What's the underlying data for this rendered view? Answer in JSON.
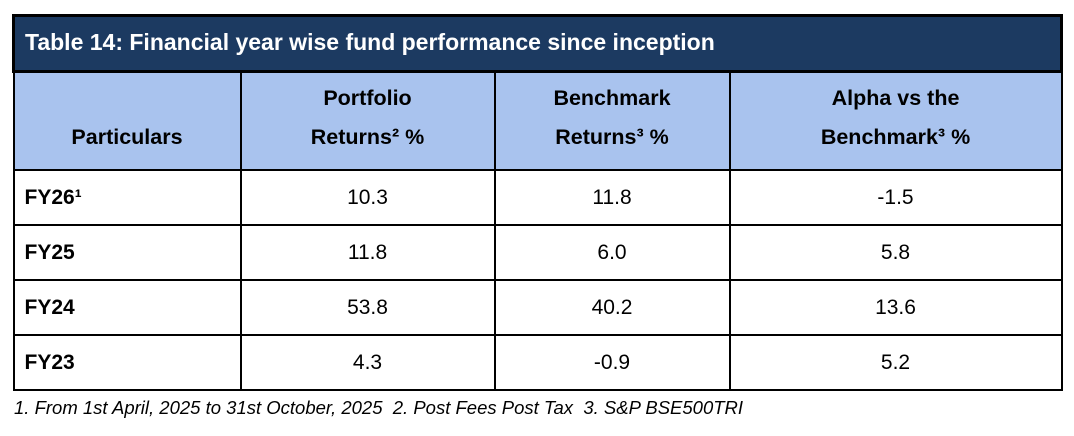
{
  "colors": {
    "title_bg": "#1C3A61",
    "title_text": "#FFFFFF",
    "header_bg": "#A9C3EE",
    "border": "#000000"
  },
  "table": {
    "title": "Table 14: Financial year wise fund performance since inception",
    "columns": [
      {
        "line1": "Particulars",
        "line2": ""
      },
      {
        "line1": "Portfolio",
        "line2": "Returns² %"
      },
      {
        "line1": "Benchmark",
        "line2": "Returns³ %"
      },
      {
        "line1": "Alpha vs the",
        "line2": "Benchmark³ %"
      }
    ],
    "rows": [
      {
        "particulars": "FY26¹",
        "portfolio": "10.3",
        "benchmark": "11.8",
        "alpha": "-1.5"
      },
      {
        "particulars": "FY25",
        "portfolio": "11.8",
        "benchmark": "6.0",
        "alpha": "5.8"
      },
      {
        "particulars": "FY24",
        "portfolio": "53.8",
        "benchmark": "40.2",
        "alpha": "13.6"
      },
      {
        "particulars": "FY23",
        "portfolio": "4.3",
        "benchmark": "-0.9",
        "alpha": "5.2"
      }
    ]
  },
  "footnote": {
    "text": "1. From 1st April, 2025 to 31st October, 2025  2. Post Fees Post Tax  3. S&P BSE500TRI"
  }
}
